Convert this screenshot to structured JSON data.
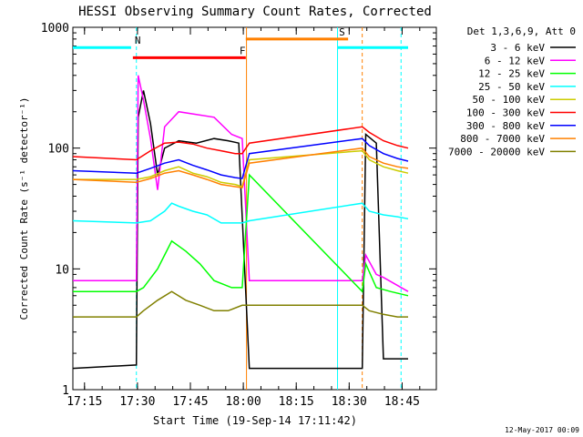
{
  "chart_data": {
    "type": "line",
    "title": "HESSI Observing Summary Count Rates, Corrected",
    "xlabel": "Start Time (19-Sep-14 17:11:42)",
    "ylabel": "Corrected Count Rate (s⁻¹ detector⁻¹)",
    "yscale": "log",
    "ylim": [
      1,
      1000
    ],
    "xlim_minutes": [
      0,
      103
    ],
    "x_start_offset_min": 0,
    "x_ticks": [
      "17:15",
      "17:30",
      "17:45",
      "18:00",
      "18:15",
      "18:30",
      "18:45"
    ],
    "x_tick_minutes": [
      3.3,
      18.3,
      33.3,
      48.3,
      63.3,
      78.3,
      93.3
    ],
    "y_ticks": [
      "1",
      "10",
      "100",
      "1000"
    ],
    "y_tick_values": [
      1,
      10,
      100,
      1000
    ],
    "legend_title": "Det 1,3,6,9, Att 0",
    "legend_position": "right",
    "footer_date": "12-May-2017 00:09",
    "series": [
      {
        "name": "3 - 6 keV",
        "color": "#000000",
        "points": [
          [
            0,
            1.5
          ],
          [
            18,
            1.6
          ],
          [
            18.5,
            180
          ],
          [
            20,
            300
          ],
          [
            22,
            160
          ],
          [
            24,
            60
          ],
          [
            26,
            100
          ],
          [
            30,
            115
          ],
          [
            35,
            110
          ],
          [
            40,
            120
          ],
          [
            44,
            115
          ],
          [
            47,
            110
          ],
          [
            50,
            1.5
          ],
          [
            82,
            1.5
          ],
          [
            83,
            130
          ],
          [
            86,
            110
          ],
          [
            88,
            1.8
          ],
          [
            95,
            1.8
          ]
        ]
      },
      {
        "name": "6 - 12 keV",
        "color": "#ff00ff",
        "points": [
          [
            0,
            8
          ],
          [
            18,
            8
          ],
          [
            18.5,
            400
          ],
          [
            20,
            250
          ],
          [
            22,
            120
          ],
          [
            24,
            45
          ],
          [
            26,
            150
          ],
          [
            30,
            200
          ],
          [
            35,
            190
          ],
          [
            40,
            180
          ],
          [
            45,
            130
          ],
          [
            48,
            120
          ],
          [
            50,
            8
          ],
          [
            82,
            8
          ],
          [
            83,
            13
          ],
          [
            86,
            9
          ],
          [
            88,
            8.5
          ],
          [
            95,
            6.5
          ]
        ]
      },
      {
        "name": "12 - 25 keV",
        "color": "#00ff00",
        "points": [
          [
            0,
            6.5
          ],
          [
            18,
            6.5
          ],
          [
            20,
            7
          ],
          [
            24,
            10
          ],
          [
            28,
            17
          ],
          [
            32,
            14
          ],
          [
            36,
            11
          ],
          [
            40,
            8
          ],
          [
            45,
            7
          ],
          [
            48,
            7
          ],
          [
            50,
            60
          ],
          [
            82,
            6.5
          ],
          [
            83,
            11
          ],
          [
            86,
            7
          ],
          [
            90,
            6.5
          ],
          [
            95,
            6
          ]
        ]
      },
      {
        "name": "25 - 50 keV",
        "color": "#00ffff",
        "points": [
          [
            0,
            25
          ],
          [
            18,
            24
          ],
          [
            22,
            25
          ],
          [
            26,
            30
          ],
          [
            28,
            35
          ],
          [
            30,
            33
          ],
          [
            34,
            30
          ],
          [
            38,
            28
          ],
          [
            42,
            24
          ],
          [
            46,
            24
          ],
          [
            48,
            24
          ],
          [
            50,
            25
          ],
          [
            82,
            35
          ],
          [
            84,
            30
          ],
          [
            88,
            28
          ],
          [
            92,
            27
          ],
          [
            95,
            26
          ]
        ]
      },
      {
        "name": "50 - 100 keV",
        "color": "#cccc00",
        "points": [
          [
            0,
            55
          ],
          [
            18,
            55
          ],
          [
            22,
            58
          ],
          [
            26,
            65
          ],
          [
            30,
            70
          ],
          [
            34,
            62
          ],
          [
            38,
            58
          ],
          [
            42,
            52
          ],
          [
            46,
            50
          ],
          [
            48,
            48
          ],
          [
            50,
            80
          ],
          [
            82,
            95
          ],
          [
            84,
            80
          ],
          [
            88,
            70
          ],
          [
            92,
            65
          ],
          [
            95,
            62
          ]
        ]
      },
      {
        "name": "100 - 300 keV",
        "color": "#ff0000",
        "points": [
          [
            0,
            85
          ],
          [
            18,
            80
          ],
          [
            22,
            95
          ],
          [
            26,
            110
          ],
          [
            30,
            112
          ],
          [
            34,
            108
          ],
          [
            38,
            100
          ],
          [
            42,
            95
          ],
          [
            46,
            90
          ],
          [
            48,
            90
          ],
          [
            50,
            110
          ],
          [
            82,
            150
          ],
          [
            84,
            135
          ],
          [
            88,
            115
          ],
          [
            92,
            105
          ],
          [
            95,
            100
          ]
        ]
      },
      {
        "name": "300 - 800 keV",
        "color": "#0000ff",
        "points": [
          [
            0,
            65
          ],
          [
            18,
            62
          ],
          [
            22,
            68
          ],
          [
            26,
            75
          ],
          [
            30,
            80
          ],
          [
            34,
            72
          ],
          [
            38,
            66
          ],
          [
            42,
            60
          ],
          [
            46,
            57
          ],
          [
            48,
            56
          ],
          [
            50,
            90
          ],
          [
            82,
            120
          ],
          [
            84,
            105
          ],
          [
            88,
            90
          ],
          [
            92,
            82
          ],
          [
            95,
            78
          ]
        ]
      },
      {
        "name": "800 - 7000 keV",
        "color": "#ff8000",
        "points": [
          [
            0,
            55
          ],
          [
            18,
            52
          ],
          [
            22,
            56
          ],
          [
            26,
            62
          ],
          [
            30,
            65
          ],
          [
            34,
            60
          ],
          [
            38,
            55
          ],
          [
            42,
            50
          ],
          [
            46,
            48
          ],
          [
            48,
            47
          ],
          [
            50,
            75
          ],
          [
            82,
            100
          ],
          [
            84,
            85
          ],
          [
            88,
            75
          ],
          [
            92,
            70
          ],
          [
            95,
            68
          ]
        ]
      },
      {
        "name": "7000 - 20000 keV",
        "color": "#808000",
        "points": [
          [
            0,
            4
          ],
          [
            18,
            4
          ],
          [
            20,
            4.5
          ],
          [
            24,
            5.5
          ],
          [
            28,
            6.5
          ],
          [
            32,
            5.5
          ],
          [
            36,
            5
          ],
          [
            40,
            4.5
          ],
          [
            44,
            4.5
          ],
          [
            48,
            5
          ],
          [
            50,
            5
          ],
          [
            82,
            5
          ],
          [
            84,
            4.5
          ],
          [
            88,
            4.2
          ],
          [
            92,
            4
          ],
          [
            95,
            4
          ]
        ]
      }
    ],
    "markers": [
      {
        "label": "N",
        "color": "#00ffff",
        "x0": 0,
        "x1": 16.5,
        "x2": 75,
        "x3": 95,
        "y": 680
      },
      {
        "label": "F",
        "color": "#ff0000",
        "x0": 17,
        "x1": 49,
        "y": 560
      },
      {
        "label": "S",
        "color": "#ff8000",
        "x0": 49,
        "x1": 78,
        "y": 800
      }
    ],
    "vlines": [
      {
        "x": 18,
        "color": "#00ffff",
        "style": "dashed"
      },
      {
        "x": 49.2,
        "color": "#ff8000",
        "style": "solid"
      },
      {
        "x": 75,
        "color": "#00ffff",
        "style": "solid"
      },
      {
        "x": 82,
        "color": "#ff8000",
        "style": "dashed"
      },
      {
        "x": 93,
        "color": "#00ffff",
        "style": "dashed"
      }
    ]
  }
}
